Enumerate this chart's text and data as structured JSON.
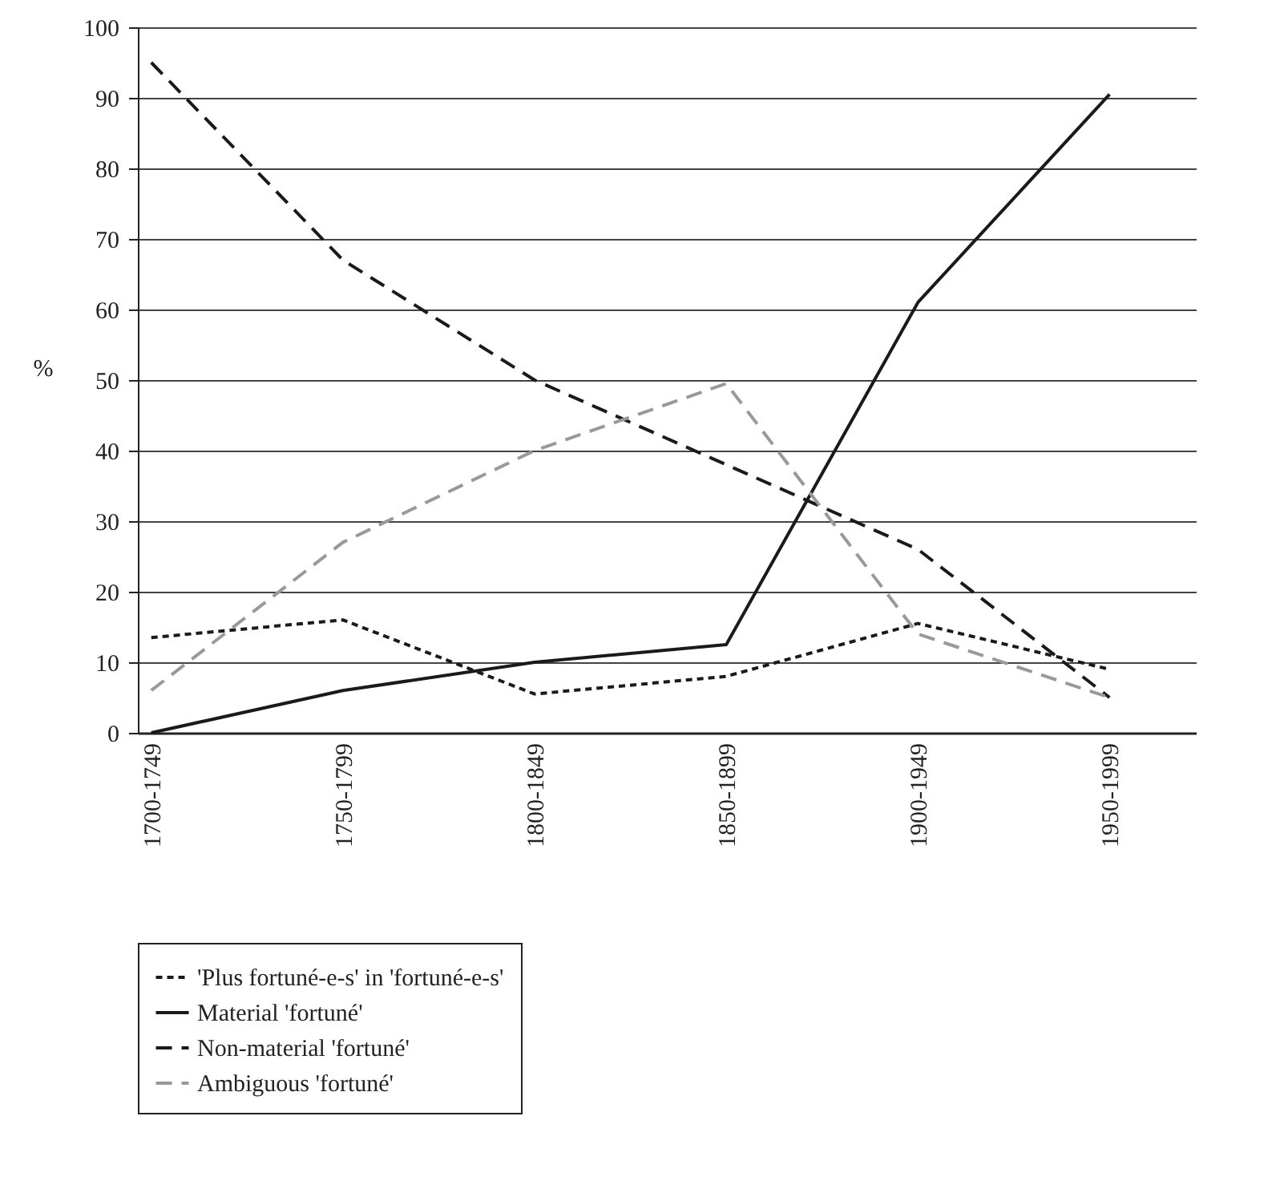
{
  "chart_data": {
    "type": "line",
    "ylabel": "%",
    "categories": [
      "1700-1749",
      "1750-1799",
      "1800-1849",
      "1850-1899",
      "1900-1949",
      "1950-1999"
    ],
    "series": [
      {
        "name": "'Plus fortuné-e-s' in 'fortuné-e-s'",
        "color": "#1a1a1a",
        "line_style": "dotted",
        "values": [
          13.5,
          16,
          5.5,
          8,
          15.5,
          9
        ]
      },
      {
        "name": "Material 'fortuné'",
        "color": "#1a1a1a",
        "line_style": "solid",
        "values": [
          0,
          6,
          10,
          12.5,
          61,
          90.5
        ]
      },
      {
        "name": "Non-material 'fortuné'",
        "color": "#1a1a1a",
        "line_style": "dashed",
        "values": [
          95,
          67,
          50,
          38,
          26,
          5
        ]
      },
      {
        "name": "Ambiguous 'fortuné'",
        "color": "#999999",
        "line_style": "dashed",
        "values": [
          6,
          27,
          40,
          49.5,
          14,
          5
        ]
      }
    ],
    "ylim": [
      0,
      100
    ],
    "yticks": [
      0,
      10,
      20,
      30,
      40,
      50,
      60,
      70,
      80,
      90,
      100
    ],
    "grid": "y",
    "legend": "bottom",
    "marker": "none"
  }
}
